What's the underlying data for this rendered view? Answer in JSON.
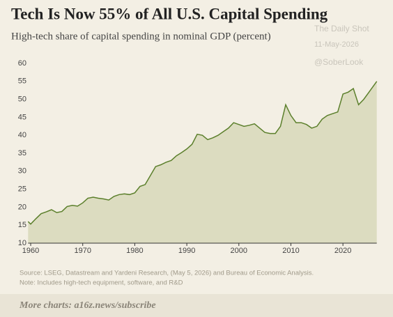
{
  "chart_data": {
    "type": "area",
    "title": "Tech Is Now 55% of All U.S. Capital Spending",
    "subtitle": "High-tech share of capital spending in nominal GDP (percent)",
    "watermark": [
      "The Daily Shot",
      "11-May-2026",
      "@SoberLook"
    ],
    "source": "Source: LSEG, Datastream and Yardeni Research, (May 5, 2026) and Bureau of Economic Analysis.",
    "note": "Note: Includes high-tech equipment, software, and R&D",
    "footer": "More charts: a16z.news/subscribe",
    "x": [
      1959.5,
      1960,
      1961,
      1962,
      1963,
      1964,
      1965,
      1966,
      1967,
      1968,
      1969,
      1970,
      1971,
      1972,
      1973,
      1974,
      1975,
      1976,
      1977,
      1978,
      1979,
      1980,
      1981,
      1982,
      1983,
      1984,
      1985,
      1986,
      1987,
      1988,
      1989,
      1990,
      1991,
      1992,
      1993,
      1994,
      1995,
      1996,
      1997,
      1998,
      1999,
      2000,
      2001,
      2002,
      2003,
      2004,
      2005,
      2006,
      2007,
      2008,
      2009,
      2010,
      2011,
      2012,
      2013,
      2014,
      2015,
      2016,
      2017,
      2018,
      2019,
      2020,
      2021,
      2022,
      2023,
      2024,
      2025,
      2026.5
    ],
    "values": [
      16,
      15.3,
      16.8,
      18.2,
      18.7,
      19.3,
      18.5,
      18.8,
      20.2,
      20.5,
      20.3,
      21.2,
      22.5,
      22.8,
      22.5,
      22.3,
      22,
      23,
      23.5,
      23.7,
      23.5,
      24,
      25.8,
      26.3,
      28.8,
      31.3,
      31.8,
      32.5,
      33,
      34.3,
      35.2,
      36.2,
      37.5,
      40.3,
      40,
      38.8,
      39.3,
      40,
      41,
      42,
      43.5,
      43,
      42.5,
      42.8,
      43.2,
      42,
      40.8,
      40.5,
      40.5,
      42.5,
      48.5,
      45.5,
      43.5,
      43.5,
      43,
      42,
      42.5,
      44.5,
      45.5,
      46,
      46.5,
      51.5,
      52,
      53,
      48.5,
      50,
      52,
      55
    ],
    "color": "#5b7f2b",
    "fill": "#dcdcc0",
    "xlim": [
      1959.5,
      2026.5
    ],
    "xticks": [
      1960,
      1970,
      1980,
      1990,
      2000,
      2010,
      2020
    ],
    "ylim": [
      10,
      60
    ],
    "yticks": [
      10,
      15,
      20,
      25,
      30,
      35,
      40,
      45,
      50,
      55,
      60
    ],
    "grid": false
  }
}
